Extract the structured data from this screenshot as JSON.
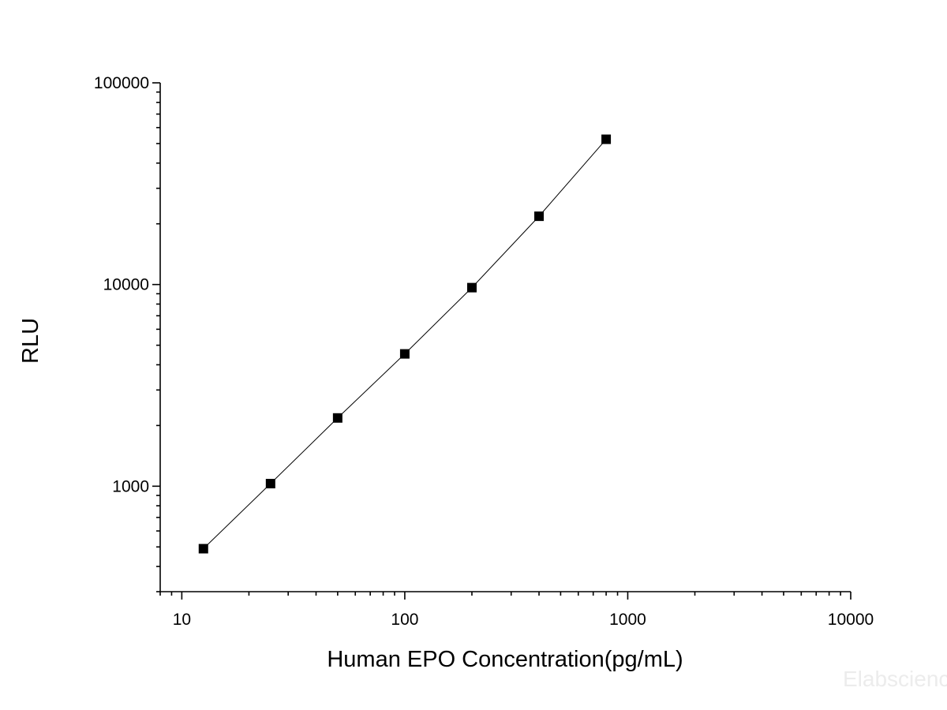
{
  "chart_data": {
    "type": "scatter",
    "title": "",
    "xlabel": "Human EPO Concentration(pg/mL)",
    "ylabel": "RLU",
    "x_scale": "log",
    "y_scale": "log",
    "xlim": [
      8,
      10000
    ],
    "ylim": [
      300,
      100000
    ],
    "x_ticks": [
      10,
      100,
      1000,
      10000
    ],
    "x_tick_labels": [
      "10",
      "100",
      "1000",
      "10000"
    ],
    "y_ticks": [
      1000,
      10000,
      100000
    ],
    "y_tick_labels": [
      "1000",
      "10000",
      "100000"
    ],
    "grid": false,
    "legend": "none",
    "series": [
      {
        "marker": "square",
        "line": "fitted curve",
        "color": "#000000",
        "x": [
          12.5,
          25,
          50,
          100,
          200,
          400,
          800
        ],
        "y": [
          490,
          1030,
          2180,
          4530,
          9650,
          21800,
          52500
        ]
      }
    ]
  },
  "watermark": "Elabscience"
}
